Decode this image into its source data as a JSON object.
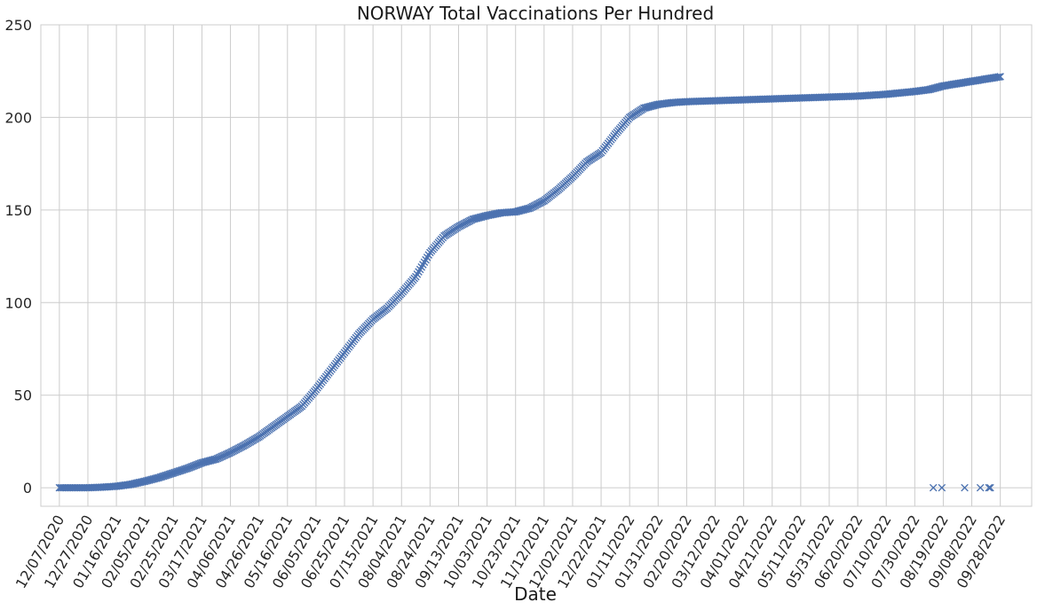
{
  "chart_data": {
    "type": "scatter",
    "title": "NORWAY   Total Vaccinations Per Hundred",
    "xlabel": "Date",
    "ylabel": "",
    "ylim": [
      -10,
      250
    ],
    "yticks": [
      0,
      50,
      100,
      150,
      200,
      250
    ],
    "xlim": [
      "2020-11-24",
      "2022-10-20"
    ],
    "xticks": [
      "12/07/2020",
      "12/27/2020",
      "01/16/2021",
      "02/05/2021",
      "02/25/2021",
      "03/17/2021",
      "04/06/2021",
      "04/26/2021",
      "05/16/2021",
      "06/05/2021",
      "06/25/2021",
      "07/15/2021",
      "08/04/2021",
      "08/24/2021",
      "09/13/2021",
      "10/03/2021",
      "10/23/2021",
      "11/12/2021",
      "12/02/2021",
      "12/22/2021",
      "01/11/2022",
      "01/31/2022",
      "02/20/2022",
      "03/12/2022",
      "04/01/2022",
      "04/21/2022",
      "05/11/2022",
      "05/31/2022",
      "06/20/2022",
      "07/10/2022",
      "07/30/2022",
      "08/19/2022",
      "09/08/2022",
      "09/28/2022"
    ],
    "grid": true,
    "marker": "x",
    "color": "#4c72b0",
    "series": [
      {
        "points": [
          [
            "2020-12-07",
            0
          ],
          [
            "2020-12-27",
            0
          ],
          [
            "2021-01-06",
            0.3
          ],
          [
            "2021-01-16",
            0.8
          ],
          [
            "2021-01-26",
            1.8
          ],
          [
            "2021-02-05",
            3.5
          ],
          [
            "2021-02-15",
            5.5
          ],
          [
            "2021-02-25",
            8
          ],
          [
            "2021-03-07",
            10.5
          ],
          [
            "2021-03-17",
            13.5
          ],
          [
            "2021-03-27",
            15.5
          ],
          [
            "2021-04-06",
            19
          ],
          [
            "2021-04-16",
            23
          ],
          [
            "2021-04-26",
            27.5
          ],
          [
            "2021-05-06",
            33
          ],
          [
            "2021-05-16",
            38.5
          ],
          [
            "2021-05-26",
            44
          ],
          [
            "2021-06-05",
            53
          ],
          [
            "2021-06-15",
            63
          ],
          [
            "2021-06-25",
            73
          ],
          [
            "2021-07-05",
            83
          ],
          [
            "2021-07-15",
            91
          ],
          [
            "2021-07-25",
            97
          ],
          [
            "2021-08-04",
            105
          ],
          [
            "2021-08-14",
            114
          ],
          [
            "2021-08-24",
            127
          ],
          [
            "2021-09-03",
            136
          ],
          [
            "2021-09-13",
            141
          ],
          [
            "2021-09-23",
            145
          ],
          [
            "2021-10-03",
            147
          ],
          [
            "2021-10-13",
            148.5
          ],
          [
            "2021-10-23",
            149
          ],
          [
            "2021-11-02",
            151
          ],
          [
            "2021-11-12",
            155
          ],
          [
            "2021-11-22",
            161
          ],
          [
            "2021-12-02",
            168
          ],
          [
            "2021-12-12",
            176
          ],
          [
            "2021-12-22",
            181
          ],
          [
            "2022-01-01",
            191
          ],
          [
            "2022-01-11",
            200
          ],
          [
            "2022-01-21",
            205
          ],
          [
            "2022-01-31",
            207
          ],
          [
            "2022-02-10",
            208
          ],
          [
            "2022-02-20",
            208.5
          ],
          [
            "2022-03-12",
            209
          ],
          [
            "2022-04-01",
            209.5
          ],
          [
            "2022-04-21",
            210
          ],
          [
            "2022-05-11",
            210.5
          ],
          [
            "2022-05-31",
            211
          ],
          [
            "2022-06-20",
            211.5
          ],
          [
            "2022-07-10",
            212.5
          ],
          [
            "2022-07-30",
            214
          ],
          [
            "2022-08-09",
            215
          ],
          [
            "2022-08-19",
            217
          ],
          [
            "2022-09-08",
            219.5
          ],
          [
            "2022-09-28",
            222
          ]
        ],
        "zero_points": [
          "2022-08-12",
          "2022-08-18",
          "2022-09-03",
          "2022-09-14",
          "2022-09-20",
          "2022-09-21"
        ]
      }
    ]
  }
}
